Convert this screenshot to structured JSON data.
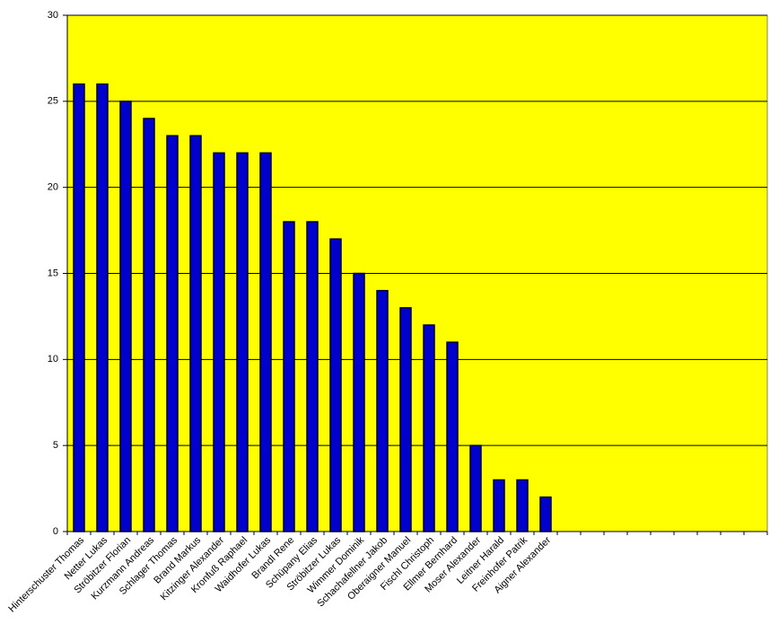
{
  "chart_data": {
    "type": "bar",
    "categories": [
      "Hinterschuster Thomas",
      "Netter Lukas",
      "Ströbitzer Florian",
      "Kurzmann Andreas",
      "Schlager Thomas",
      "Brand Markus",
      "Kitzinger Alexander",
      "Kronfuß Raphael",
      "Waidhofer Lukas",
      "Brandl Rene",
      "Schüpany Elias",
      "Ströbitzer Lukas",
      "Wimmer Dominik",
      "Schachafellner Jakob",
      "Oberaigner Manuel",
      "Fischl Christoph",
      "Ellmer Bernhard",
      "Moser Alexander",
      "Leitner Harald",
      "Freinhofer Patrik",
      "Aigner Alexander",
      null,
      null,
      null,
      null,
      null,
      null,
      null,
      null,
      null
    ],
    "values": [
      26,
      26,
      25,
      24,
      23,
      23,
      22,
      22,
      22,
      18,
      18,
      17,
      15,
      14,
      13,
      12,
      11,
      5,
      3,
      3,
      2,
      null,
      null,
      null,
      null,
      null,
      null,
      null,
      null,
      null
    ],
    "color": "#0000cc",
    "plot_background": "#ffff00",
    "ylim": [
      0,
      30
    ],
    "yticks": [
      0,
      5,
      10,
      15,
      20,
      25,
      30
    ],
    "grid": true
  }
}
